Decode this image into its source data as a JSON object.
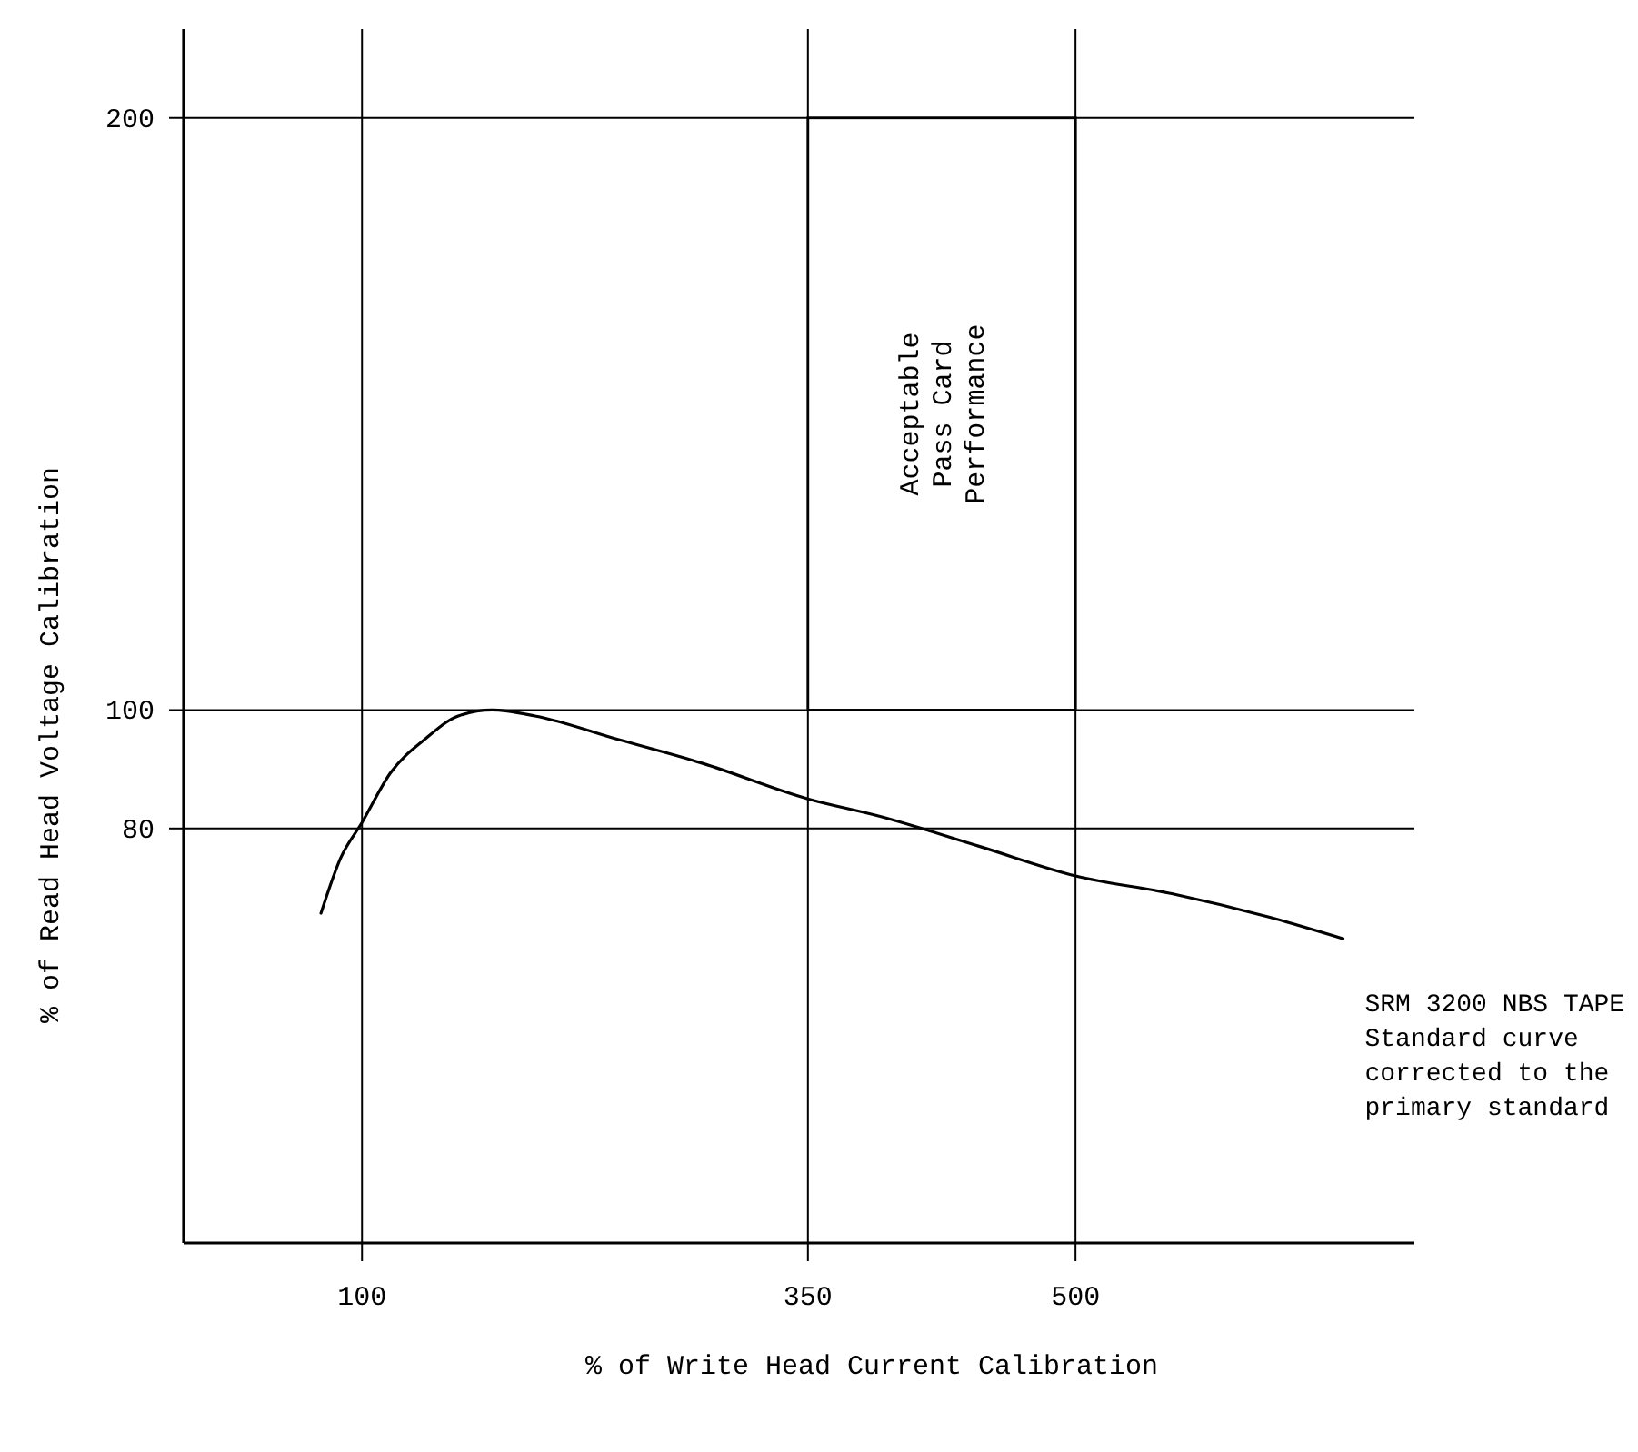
{
  "chart_data": {
    "type": "line",
    "xlabel": "% of Write Head Current Calibration",
    "ylabel": "% of Read Head Voltage Calibration",
    "xlim": [
      0,
      690
    ],
    "ylim": [
      10,
      215
    ],
    "xticks": [
      100,
      350,
      500
    ],
    "yticks": [
      80,
      100,
      200
    ],
    "grid": false,
    "marker": "none",
    "line_style": "solid",
    "series": [
      {
        "name": "SRM 3200 NBS TAPE\nStandard curve\ncorrected to the\nprimary standard",
        "color": "#000000",
        "x": [
          77,
          88,
          100,
          116,
          135,
          154,
          173,
          197,
          244,
          291,
          350,
          391,
          446,
          500,
          554,
          609,
          650
        ],
        "values": [
          65.7,
          75,
          81,
          89.4,
          95,
          99,
          100,
          99,
          95,
          91,
          85,
          82,
          77,
          72,
          69,
          65,
          61.4
        ]
      }
    ],
    "bands": [
      {
        "axis": "x",
        "from": 350,
        "to": 500,
        "label": "Acceptable\nPass Card\nPerformance",
        "color": "#ffffff"
      }
    ],
    "ref_lines": [
      {
        "axis": "y",
        "value": 80
      },
      {
        "axis": "y",
        "value": 100
      },
      {
        "axis": "y",
        "value": 200
      },
      {
        "axis": "x",
        "value": 100
      },
      {
        "axis": "x",
        "value": 350
      },
      {
        "axis": "x",
        "value": 500
      }
    ]
  }
}
